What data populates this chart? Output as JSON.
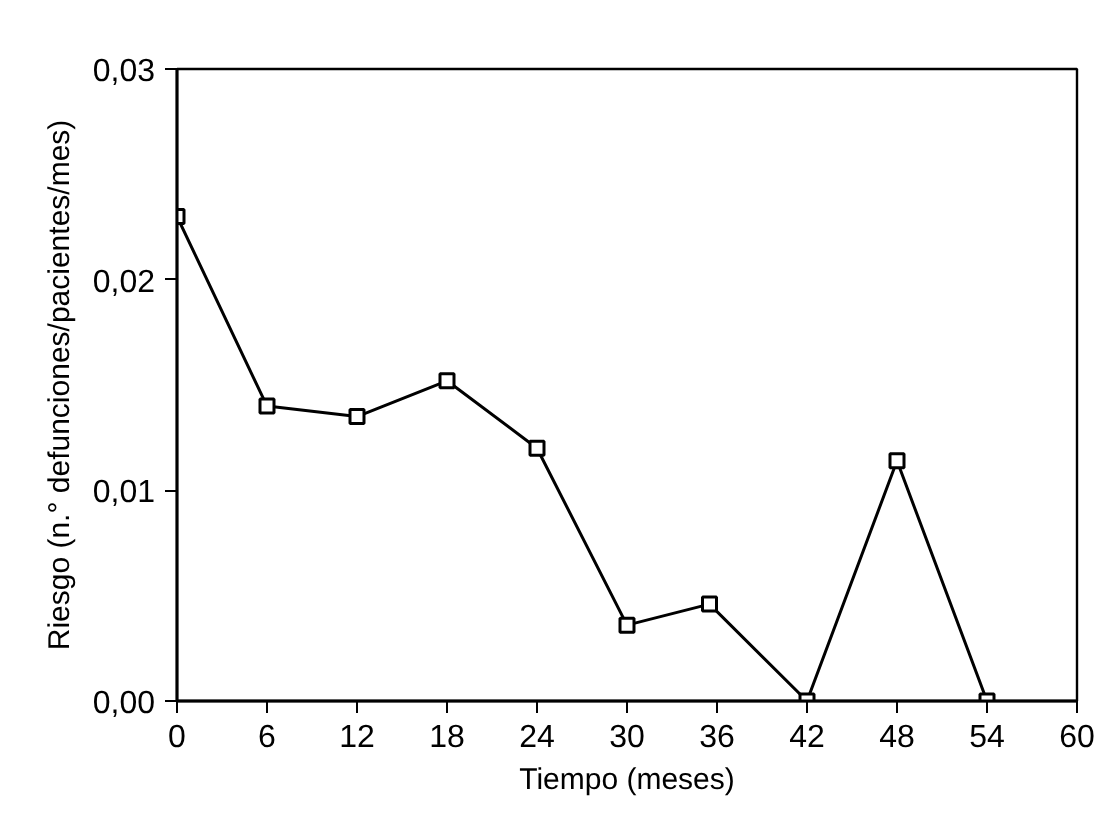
{
  "chart_data": {
    "type": "line",
    "xlabel": "Tiempo (meses)",
    "ylabel": "Riesgo (n.° defunciones/pacientes/mes)",
    "x": [
      0,
      6,
      12,
      18,
      24,
      30,
      35.5,
      42,
      48,
      54
    ],
    "series": [
      {
        "color": "#000000",
        "values": [
          0.023,
          0.014,
          0.0135,
          0.0152,
          0.012,
          0.0036,
          0.0046,
          0,
          0.0114,
          0
        ]
      }
    ],
    "xlim": [
      0,
      60
    ],
    "ylim": [
      0,
      0.03
    ],
    "xticks": [
      0,
      6,
      12,
      18,
      24,
      30,
      36,
      42,
      48,
      54,
      60
    ],
    "yticks": [
      {
        "value": 0,
        "label": "0,00"
      },
      {
        "value": 0.01,
        "label": "0,01"
      },
      {
        "value": 0.02,
        "label": "0,02"
      },
      {
        "value": 0.03,
        "label": "0,03"
      }
    ],
    "grid": false,
    "marker": "square",
    "line_style": "solid"
  }
}
